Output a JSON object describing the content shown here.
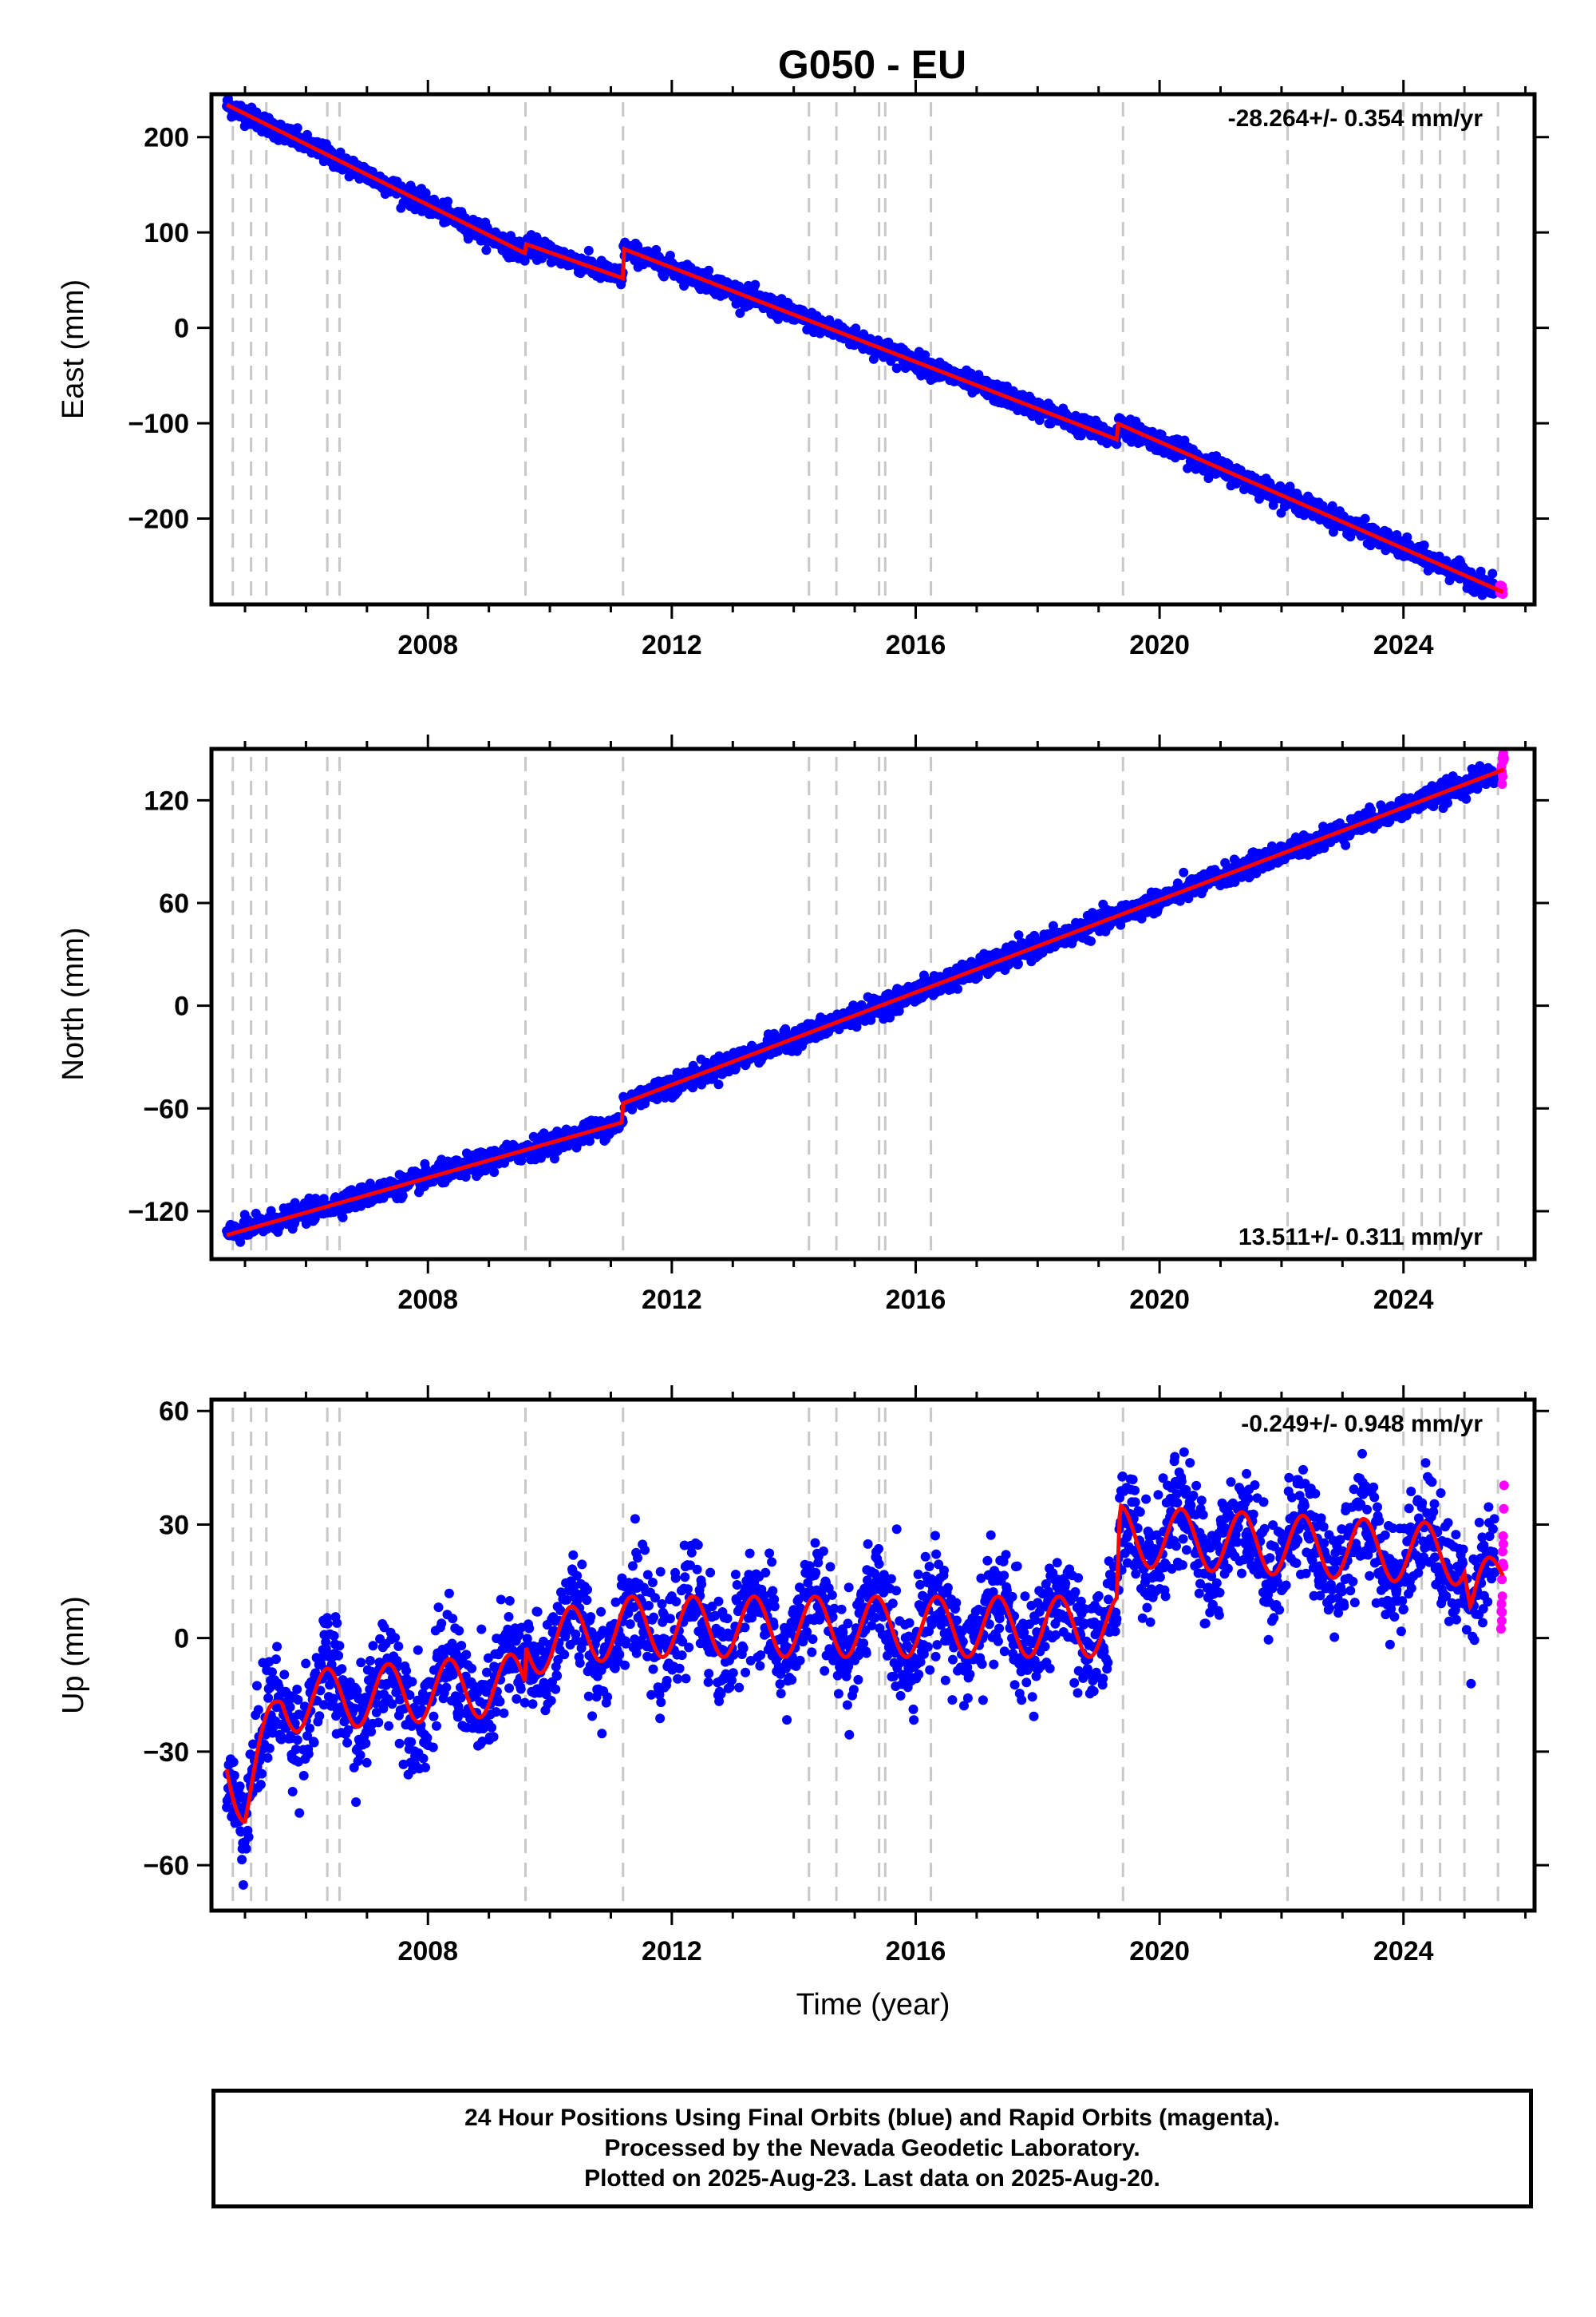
{
  "title": "G050 - EU",
  "colors": {
    "final_orbits": "#0000ff",
    "rapid_orbits": "#ff00ff",
    "model": "#ff0000",
    "event_lines": "#c8c8c8"
  },
  "chart_data": [
    {
      "type": "scatter",
      "panel": "east",
      "ylabel": "East (mm)",
      "xlabel": "",
      "xlim": [
        2004.45,
        2026.15
      ],
      "ylim": [
        -290,
        245
      ],
      "xticks": [
        2008,
        2012,
        2016,
        2020,
        2024
      ],
      "yticks": [
        200,
        100,
        0,
        -100,
        -200
      ],
      "ytick_labels": [
        "200",
        "100",
        "0",
        "−100",
        "−200"
      ],
      "rate": "-28.264+/- 0.354 mm/yr",
      "rate_position": "top-right",
      "series": [
        {
          "kind": "final",
          "approx_points": [
            [
              2004.7,
              235
            ],
            [
              2005.5,
              220
            ],
            [
              2006.5,
              190
            ],
            [
              2008.0,
              140
            ],
            [
              2009.6,
              85
            ],
            [
              2011.2,
              75
            ],
            [
              2012.6,
              50
            ],
            [
              2014.5,
              10
            ],
            [
              2016.0,
              -25
            ],
            [
              2018.0,
              -80
            ],
            [
              2019.3,
              -105
            ],
            [
              2020.0,
              -115
            ],
            [
              2022.0,
              -165
            ],
            [
              2024.0,
              -225
            ],
            [
              2025.5,
              -270
            ]
          ],
          "noise_mm": 5
        },
        {
          "kind": "rapid",
          "approx_points": [
            [
              2025.58,
              -272
            ],
            [
              2025.63,
              -276
            ]
          ],
          "noise_mm": 4
        },
        {
          "kind": "model",
          "approx_points": [
            [
              2004.7,
              234
            ],
            [
              2009.6,
              78
            ],
            [
              2009.6,
              88
            ],
            [
              2011.2,
              52
            ],
            [
              2011.2,
              83
            ],
            [
              2019.3,
              -117
            ],
            [
              2019.3,
              -100
            ],
            [
              2025.63,
              -277
            ]
          ]
        }
      ]
    },
    {
      "type": "scatter",
      "panel": "north",
      "ylabel": "North (mm)",
      "xlabel": "",
      "xlim": [
        2004.45,
        2026.15
      ],
      "ylim": [
        -148,
        150
      ],
      "xticks": [
        2008,
        2012,
        2016,
        2020,
        2024
      ],
      "yticks": [
        120,
        60,
        0,
        -60,
        -120
      ],
      "ytick_labels": [
        "120",
        "60",
        "0",
        "−60",
        "−120"
      ],
      "rate": "13.511+/- 0.311 mm/yr",
      "rate_position": "bottom-right",
      "series": [
        {
          "kind": "final",
          "approx_points": [
            [
              2004.7,
              -134
            ],
            [
              2005.5,
              -132
            ],
            [
              2006.5,
              -120
            ],
            [
              2008.0,
              -102
            ],
            [
              2009.6,
              -82
            ],
            [
              2011.2,
              -66
            ],
            [
              2012.0,
              -45
            ],
            [
              2014.0,
              -12
            ],
            [
              2016.0,
              12
            ],
            [
              2018.0,
              38
            ],
            [
              2020.0,
              62
            ],
            [
              2022.0,
              88
            ],
            [
              2024.0,
              112
            ],
            [
              2025.5,
              130
            ]
          ],
          "noise_mm": 3
        },
        {
          "kind": "rapid",
          "approx_points": [
            [
              2025.6,
              132
            ],
            [
              2025.65,
              145
            ]
          ],
          "noise_mm": 4
        },
        {
          "kind": "model",
          "approx_points": [
            [
              2004.7,
              -134
            ],
            [
              2011.2,
              -68
            ],
            [
              2011.2,
              -57
            ],
            [
              2025.65,
              138
            ]
          ]
        }
      ]
    },
    {
      "type": "scatter",
      "panel": "up",
      "ylabel": "Up (mm)",
      "xlabel": "Time (year)",
      "xlim": [
        2004.45,
        2026.15
      ],
      "ylim": [
        -72,
        63
      ],
      "xticks": [
        2008,
        2012,
        2016,
        2020,
        2024
      ],
      "yticks": [
        60,
        30,
        0,
        -30,
        -60
      ],
      "ytick_labels": [
        "60",
        "30",
        "0",
        "−30",
        "−60"
      ],
      "rate": "-0.249+/- 0.948 mm/yr",
      "rate_position": "top-right",
      "series": [
        {
          "kind": "final",
          "approx_points": [
            [
              2004.7,
              -33
            ],
            [
              2005.2,
              -42
            ],
            [
              2006.0,
              -22
            ],
            [
              2008.0,
              -20
            ],
            [
              2009.6,
              -15
            ],
            [
              2011.2,
              -5
            ],
            [
              2012.5,
              0
            ],
            [
              2015.0,
              0
            ],
            [
              2017.0,
              0
            ],
            [
              2019.0,
              -2
            ],
            [
              2019.4,
              18
            ],
            [
              2022.0,
              22
            ],
            [
              2024.5,
              28
            ],
            [
              2025.0,
              12
            ],
            [
              2025.5,
              15
            ]
          ],
          "noise_mm": 7
        },
        {
          "kind": "rapid",
          "approx_points": [
            [
              2025.6,
              5
            ],
            [
              2025.62,
              15
            ],
            [
              2025.65,
              30
            ]
          ],
          "noise_mm": 5
        },
        {
          "kind": "model",
          "approx_points": [
            [
              2004.7,
              -30
            ],
            [
              2005.0,
              -44
            ],
            [
              2005.6,
              -17
            ],
            [
              2009.6,
              -12
            ],
            [
              2009.6,
              -2
            ],
            [
              2011.2,
              3
            ],
            [
              2019.3,
              3
            ],
            [
              2019.35,
              27
            ],
            [
              2025.0,
              22
            ],
            [
              2025.1,
              8
            ],
            [
              2025.63,
              18
            ]
          ],
          "seasonal_amplitude_mm": 8
        }
      ]
    }
  ],
  "event_lines_year": [
    2004.8,
    2005.1,
    2005.35,
    2006.35,
    2006.55,
    2009.6,
    2011.2,
    2014.25,
    2014.7,
    2015.4,
    2015.5,
    2016.25,
    2019.4,
    2022.1,
    2024.0,
    2024.3,
    2024.6,
    2025.0,
    2025.55
  ],
  "caption": {
    "line1": "24 Hour Positions Using Final Orbits (blue) and Rapid Orbits (magenta).",
    "line2": "Processed by the Nevada Geodetic Laboratory.",
    "line3": "Plotted on 2025-Aug-23. Last data on 2025-Aug-20."
  }
}
